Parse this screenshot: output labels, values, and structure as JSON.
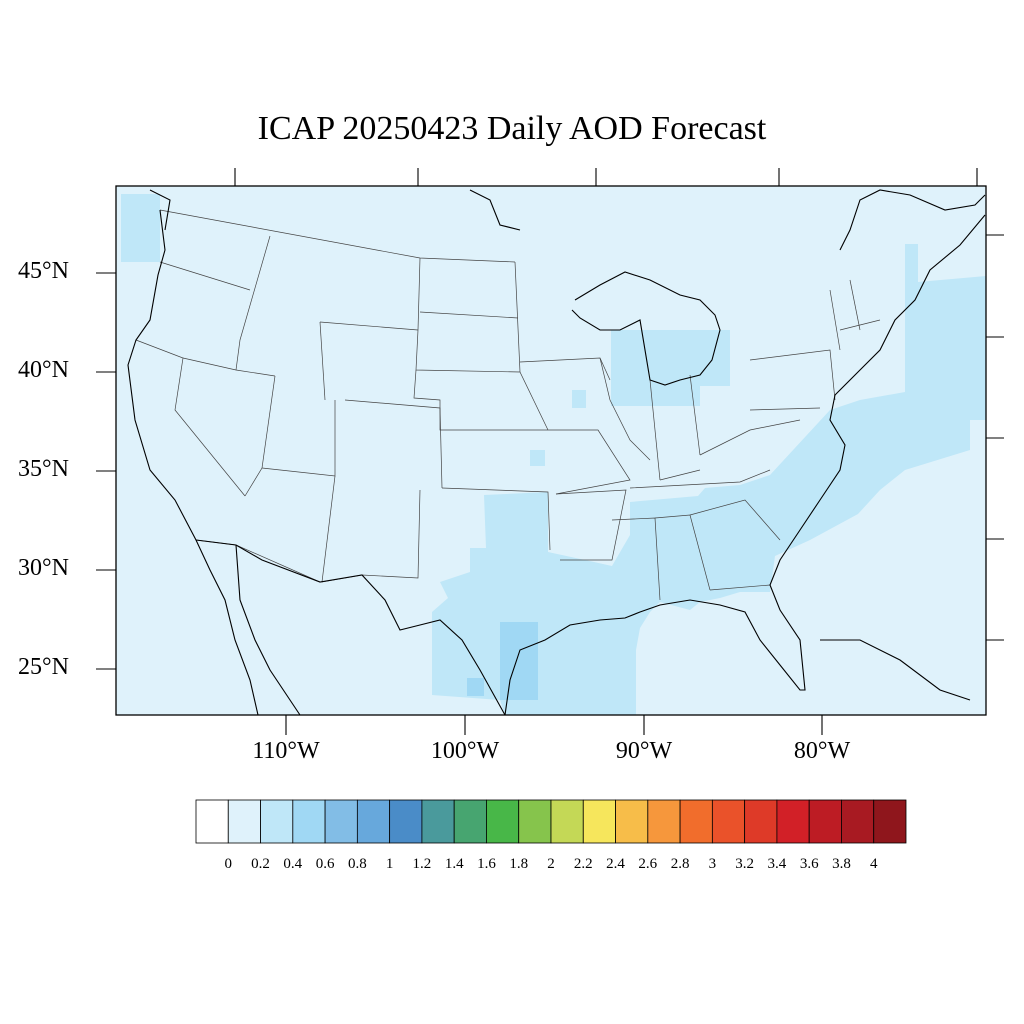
{
  "title": "ICAP 20250423 Daily AOD Forecast",
  "latitude_labels": [
    "45°N",
    "40°N",
    "35°N",
    "30°N",
    "25°N"
  ],
  "longitude_labels": [
    "110°W",
    "100°W",
    "90°W",
    "80°W"
  ],
  "colorbar": {
    "labels": [
      "0",
      "0.2",
      "0.4",
      "0.6",
      "0.8",
      "1",
      "1.2",
      "1.4",
      "1.6",
      "1.8",
      "2",
      "2.2",
      "2.4",
      "2.6",
      "2.8",
      "3",
      "3.2",
      "3.4",
      "3.6",
      "3.8",
      "4"
    ],
    "colors": [
      "#ffffff",
      "#dff2fb",
      "#bfe7f8",
      "#a0d8f4",
      "#82bde6",
      "#67a8dc",
      "#4a8cc8",
      "#4a9a9c",
      "#47a570",
      "#48b748",
      "#86c44c",
      "#c4d856",
      "#f6e65c",
      "#f7bd49",
      "#f6973c",
      "#f16d2c",
      "#ea522a",
      "#de3a28",
      "#d22027",
      "#bd1c24",
      "#a81a22",
      "#8f161c"
    ]
  },
  "map": {
    "background_color": "#dff2fb",
    "aod_level_0_2_to_0_4_color": "#bfe7f8",
    "aod_level_0_4_to_0_6_color": "#a0d8f4",
    "coastline_color": "#000000",
    "border_color": "#444444"
  }
}
